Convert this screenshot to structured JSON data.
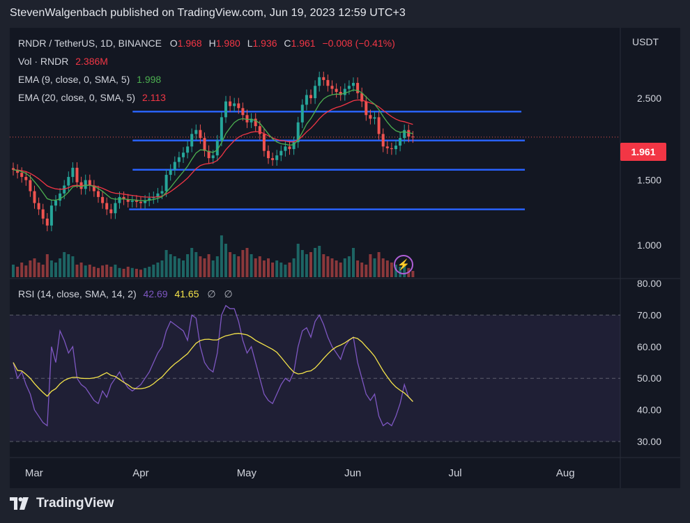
{
  "header": {
    "text": "StevenWalgenbach published on TradingView.com, Jun 19, 2023 12:59 UTC+3"
  },
  "legend": {
    "symbol": "RNDR / TetherUS, 1D, BINANCE",
    "o_label": "O",
    "o_value": "1.968",
    "h_label": "H",
    "h_value": "1.980",
    "l_label": "L",
    "l_value": "1.936",
    "c_label": "C",
    "c_value": "1.961",
    "change": "−0.008 (−0.41%)",
    "vol_label": "Vol · RNDR",
    "vol_value": "2.386M",
    "ema9_label": "EMA (9, close, 0, SMA, 5)",
    "ema9_value": "1.998",
    "ema20_label": "EMA (20, close, 0, SMA, 5)",
    "ema20_value": "2.113",
    "rsi_label": "RSI (14, close, SMA, 14, 2)",
    "rsi_value": "42.69",
    "rsi_ma_value": "41.65",
    "rsi_extra1": "∅",
    "rsi_extra2": "∅"
  },
  "price_axis": {
    "currency": "USDT",
    "ticks": [
      "2.500",
      "1.500",
      "1.000"
    ],
    "last_price": "1.961"
  },
  "rsi_axis": {
    "ticks": [
      "80.00",
      "70.00",
      "60.00",
      "50.00",
      "40.00",
      "30.00"
    ]
  },
  "time_axis": {
    "labels": [
      "Mar",
      "Apr",
      "May",
      "Jun",
      "Jul",
      "Aug"
    ]
  },
  "footer": {
    "brand": "TradingView"
  },
  "colors": {
    "up": "#26a69a",
    "down": "#ef5350",
    "ema9": "#4caf50",
    "ema20": "#f23645",
    "rsi": "#7e57c2",
    "rsi_ma": "#f5e44a",
    "level": "#2962ff",
    "background": "#131722"
  },
  "chart_data": {
    "type": "candlestick",
    "x_range": [
      "2023-02-25",
      "2023-08-31"
    ],
    "price_scale": "log",
    "price_ticks": [
      2.5,
      1.5,
      1.0
    ],
    "close": [
      1.6,
      1.57,
      1.53,
      1.5,
      1.4,
      1.3,
      1.25,
      1.18,
      1.13,
      1.28,
      1.32,
      1.38,
      1.45,
      1.53,
      1.62,
      1.48,
      1.42,
      1.5,
      1.45,
      1.4,
      1.35,
      1.3,
      1.25,
      1.22,
      1.3,
      1.35,
      1.33,
      1.31,
      1.32,
      1.31,
      1.3,
      1.32,
      1.34,
      1.35,
      1.38,
      1.4,
      1.55,
      1.6,
      1.68,
      1.73,
      1.78,
      1.85,
      2.0,
      2.05,
      1.95,
      1.8,
      1.72,
      1.75,
      1.92,
      2.22,
      2.45,
      2.38,
      2.42,
      2.35,
      2.25,
      2.15,
      2.2,
      2.1,
      2.0,
      1.8,
      1.72,
      1.7,
      1.75,
      1.8,
      1.85,
      1.82,
      1.9,
      2.15,
      2.4,
      2.55,
      2.5,
      2.7,
      2.85,
      2.8,
      2.7,
      2.65,
      2.6,
      2.55,
      2.65,
      2.7,
      2.75,
      2.58,
      2.45,
      2.25,
      2.2,
      2.22,
      2.0,
      1.85,
      1.83,
      1.82,
      1.86,
      1.95,
      2.05,
      1.968,
      1.961
    ],
    "volume_relative": [
      0.3,
      0.25,
      0.35,
      0.28,
      0.4,
      0.45,
      0.35,
      0.3,
      0.55,
      0.4,
      0.35,
      0.45,
      0.6,
      0.55,
      0.5,
      0.3,
      0.35,
      0.28,
      0.3,
      0.25,
      0.22,
      0.28,
      0.3,
      0.25,
      0.3,
      0.22,
      0.2,
      0.25,
      0.22,
      0.2,
      0.18,
      0.22,
      0.25,
      0.3,
      0.35,
      0.4,
      0.65,
      0.55,
      0.5,
      0.45,
      0.4,
      0.55,
      0.7,
      0.6,
      0.5,
      0.45,
      0.55,
      0.4,
      0.5,
      1.0,
      0.8,
      0.6,
      0.55,
      0.5,
      0.65,
      0.7,
      0.55,
      0.45,
      0.5,
      0.4,
      0.45,
      0.35,
      0.4,
      0.35,
      0.3,
      0.35,
      0.45,
      0.8,
      0.65,
      0.55,
      0.6,
      0.7,
      0.75,
      0.55,
      0.5,
      0.45,
      0.4,
      0.35,
      0.45,
      0.5,
      0.7,
      0.4,
      0.35,
      0.3,
      0.55,
      0.45,
      0.6,
      0.45,
      0.4,
      0.35,
      0.3,
      0.25,
      0.3,
      0.22,
      0.15
    ],
    "levels": [
      2.3,
      1.92,
      1.6,
      1.25
    ],
    "rsi": [
      55,
      50,
      52,
      48,
      45,
      40,
      38,
      36,
      35,
      60,
      55,
      65,
      62,
      58,
      60,
      50,
      48,
      47,
      45,
      43,
      42,
      46,
      44,
      48,
      50,
      52,
      49,
      47,
      46,
      47,
      48,
      50,
      52,
      55,
      58,
      60,
      65,
      68,
      67,
      66,
      65,
      62,
      70,
      69,
      60,
      55,
      53,
      52,
      58,
      70,
      73,
      72,
      72,
      68,
      62,
      58,
      60,
      55,
      50,
      45,
      43,
      42,
      45,
      48,
      50,
      49,
      52,
      60,
      65,
      66,
      63,
      68,
      70,
      67,
      63,
      60,
      58,
      56,
      60,
      62,
      63,
      55,
      50,
      45,
      43,
      45,
      38,
      35,
      36,
      35,
      38,
      42,
      48,
      44,
      42.69
    ],
    "rsi_ma_last": 41.65,
    "rsi_ticks": [
      80,
      70,
      60,
      50,
      40,
      30
    ]
  }
}
